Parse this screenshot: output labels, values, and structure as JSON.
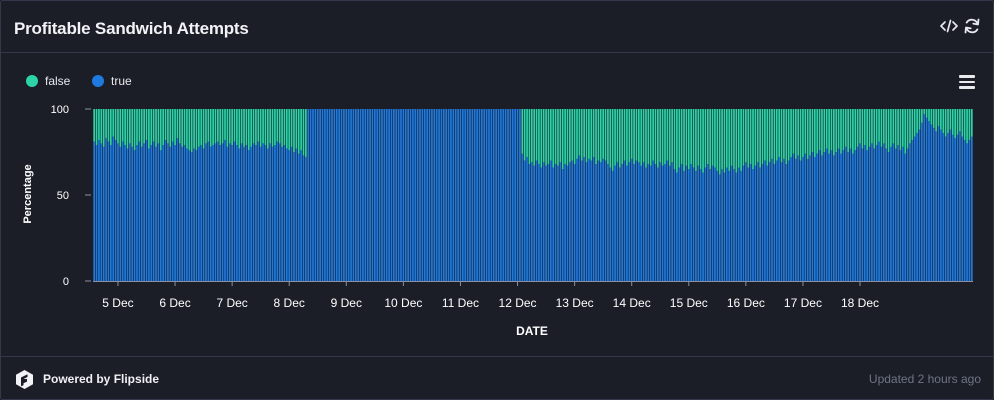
{
  "header": {
    "title": "Profitable Sandwich Attempts",
    "embed_icon": "code-icon",
    "refresh_icon": "refresh-icon"
  },
  "footer": {
    "brand": "Powered by Flipside",
    "brand_icon": "flipside-logo-icon",
    "updated": "Updated 2 hours ago"
  },
  "colors": {
    "background": "#1b1e27",
    "border": "#34384a",
    "false": "#2dd4a8",
    "true": "#1f7ae0"
  },
  "chart_data": {
    "type": "bar",
    "stacked": "percent",
    "xlabel": "DATE",
    "ylabel": "Percentage",
    "ylim": [
      0,
      100
    ],
    "yticks": [
      0,
      50,
      100
    ],
    "legend_position": "top-left",
    "grid": false,
    "x_tick_labels": [
      "5 Dec",
      "6 Dec",
      "7 Dec",
      "8 Dec",
      "9 Dec",
      "10 Dec",
      "11 Dec",
      "12 Dec",
      "13 Dec",
      "14 Dec",
      "15 Dec",
      "16 Dec",
      "17 Dec",
      "18 Dec"
    ],
    "x_start": "2022-12-04T14:00",
    "x_interval_hours": 1,
    "series": [
      {
        "name": "false",
        "color": "#2dd4a8"
      },
      {
        "name": "true",
        "color": "#1f7ae0"
      }
    ],
    "true_percent": [
      81,
      79,
      82,
      80,
      78,
      83,
      81,
      79,
      84,
      82,
      80,
      78,
      81,
      79,
      77,
      80,
      78,
      76,
      79,
      81,
      78,
      80,
      82,
      77,
      79,
      81,
      78,
      80,
      76,
      79,
      82,
      80,
      78,
      81,
      79,
      83,
      80,
      78,
      79,
      77,
      76,
      75,
      77,
      76,
      78,
      79,
      77,
      80,
      81,
      78,
      79,
      80,
      81,
      79,
      80,
      82,
      78,
      80,
      79,
      81,
      79,
      77,
      80,
      78,
      79,
      76,
      78,
      80,
      79,
      81,
      78,
      80,
      79,
      77,
      80,
      78,
      79,
      81,
      80,
      78,
      79,
      77,
      76,
      78,
      75,
      77,
      74,
      76,
      73,
      72,
      100,
      100,
      100,
      100,
      100,
      100,
      100,
      100,
      100,
      100,
      100,
      100,
      100,
      100,
      100,
      100,
      100,
      100,
      100,
      100,
      100,
      100,
      100,
      100,
      100,
      100,
      100,
      100,
      100,
      100,
      100,
      100,
      100,
      100,
      100,
      100,
      100,
      100,
      100,
      100,
      100,
      100,
      100,
      100,
      100,
      100,
      100,
      100,
      100,
      100,
      100,
      100,
      100,
      100,
      100,
      100,
      100,
      100,
      100,
      100,
      100,
      100,
      100,
      100,
      100,
      100,
      100,
      100,
      100,
      100,
      100,
      100,
      100,
      100,
      100,
      100,
      100,
      100,
      100,
      100,
      100,
      100,
      100,
      100,
      100,
      100,
      100,
      100,
      100,
      100,
      74,
      70,
      72,
      68,
      69,
      67,
      70,
      68,
      66,
      69,
      67,
      68,
      70,
      66,
      68,
      67,
      69,
      65,
      68,
      67,
      69,
      70,
      68,
      71,
      73,
      70,
      72,
      69,
      71,
      70,
      72,
      68,
      70,
      69,
      71,
      70,
      68,
      66,
      64,
      67,
      69,
      66,
      68,
      70,
      67,
      69,
      71,
      68,
      70,
      69,
      67,
      69,
      66,
      68,
      67,
      70,
      68,
      66,
      69,
      67,
      68,
      70,
      67,
      69,
      65,
      63,
      66,
      68,
      64,
      67,
      65,
      68,
      66,
      64,
      67,
      65,
      63,
      66,
      68,
      65,
      67,
      66,
      64,
      62,
      65,
      63,
      66,
      64,
      67,
      65,
      63,
      66,
      64,
      67,
      69,
      66,
      68,
      65,
      67,
      69,
      66,
      68,
      70,
      67,
      69,
      71,
      68,
      70,
      72,
      69,
      71,
      68,
      70,
      72,
      74,
      71,
      73,
      70,
      72,
      74,
      71,
      73,
      75,
      72,
      74,
      76,
      73,
      75,
      77,
      74,
      76,
      73,
      75,
      77,
      74,
      76,
      78,
      75,
      77,
      74,
      76,
      78,
      80,
      77,
      79,
      76,
      78,
      80,
      77,
      79,
      81,
      78,
      80,
      77,
      75,
      78,
      80,
      77,
      79,
      76,
      78,
      74,
      77,
      80,
      82,
      84,
      86,
      88,
      92,
      97,
      95,
      93,
      91,
      89,
      87,
      90,
      88,
      86,
      84,
      86,
      88,
      85,
      83,
      85,
      87,
      84,
      82,
      80,
      82,
      84
    ]
  }
}
